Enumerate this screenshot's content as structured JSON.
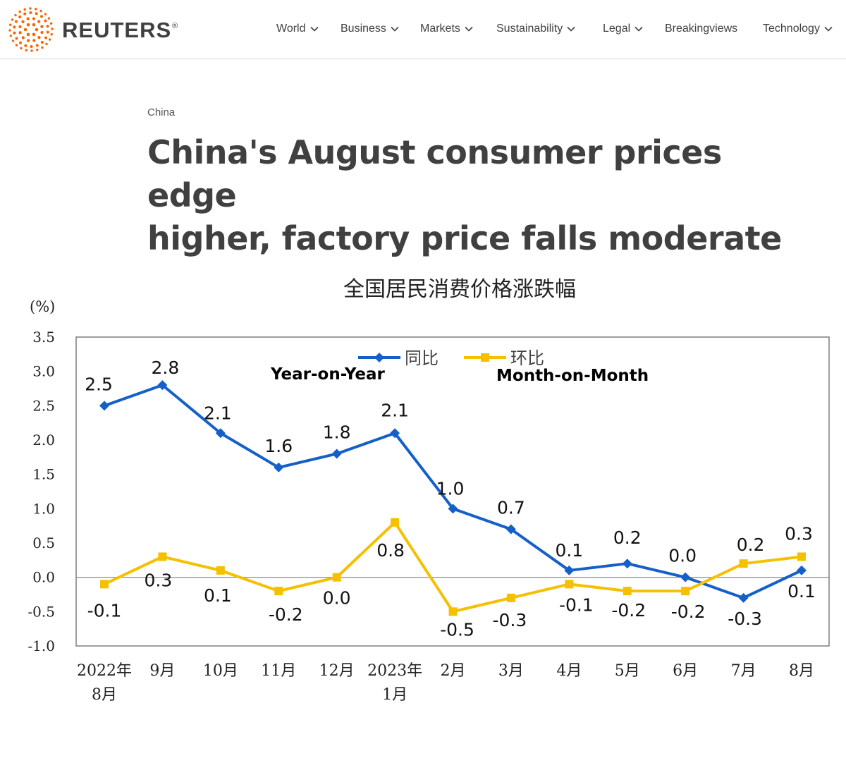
{
  "brand": {
    "name": "REUTERS",
    "reg": "®",
    "accent": "#fa6400"
  },
  "nav": {
    "items": [
      {
        "label": "World",
        "dropdown": true
      },
      {
        "label": "Business",
        "dropdown": true
      },
      {
        "label": "Markets",
        "dropdown": true
      },
      {
        "label": "Sustainability",
        "dropdown": true
      },
      {
        "label": "Legal",
        "dropdown": true
      },
      {
        "label": "Breakingviews",
        "dropdown": false
      },
      {
        "label": "Technology",
        "dropdown": true
      }
    ]
  },
  "article": {
    "kicker": "China",
    "headline_line1": "China's August consumer prices edge",
    "headline_line2": "higher, factory price falls moderate"
  },
  "chart_data": {
    "type": "line",
    "title": "全国居民消费价格涨跌幅",
    "unit_label": "(%)",
    "ylim": [
      -1.0,
      3.5
    ],
    "yticks": [
      "3.5",
      "3.0",
      "2.5",
      "2.0",
      "1.5",
      "1.0",
      "0.5",
      "0.0",
      "-0.5",
      "-1.0"
    ],
    "categories": [
      [
        "2022年",
        "8月"
      ],
      [
        "9月"
      ],
      [
        "10月"
      ],
      [
        "11月"
      ],
      [
        "12月"
      ],
      [
        "2023年",
        "1月"
      ],
      [
        "2月"
      ],
      [
        "3月"
      ],
      [
        "4月"
      ],
      [
        "5月"
      ],
      [
        "6月"
      ],
      [
        "7月"
      ],
      [
        "8月"
      ]
    ],
    "grid": false,
    "legend_position": "top-center",
    "series": [
      {
        "name": "同比",
        "english_name": "Year-on-Year",
        "color": "#1560c8",
        "marker": "diamond",
        "values": [
          2.5,
          2.8,
          2.1,
          1.6,
          1.8,
          2.1,
          1.0,
          0.7,
          0.1,
          0.2,
          0.0,
          -0.3,
          0.1
        ],
        "labels": [
          "2.5",
          "2.8",
          "2.1",
          "1.6",
          "1.8",
          "2.1",
          "1.0",
          "0.7",
          "0.1",
          "0.2",
          "0.0",
          "-0.3",
          "0.1"
        ]
      },
      {
        "name": "环比",
        "english_name": "Month-on-Month",
        "color": "#f5c000",
        "marker": "square",
        "values": [
          -0.1,
          0.3,
          0.1,
          -0.2,
          0.0,
          0.8,
          -0.5,
          -0.3,
          -0.1,
          -0.2,
          -0.2,
          0.2,
          0.3
        ],
        "labels": [
          "-0.1",
          "0.3",
          "0.1",
          "-0.2",
          "0.0",
          "0.8",
          "-0.5",
          "-0.3",
          "-0.1",
          "-0.2",
          "-0.2",
          "0.2",
          "0.3"
        ]
      }
    ]
  }
}
